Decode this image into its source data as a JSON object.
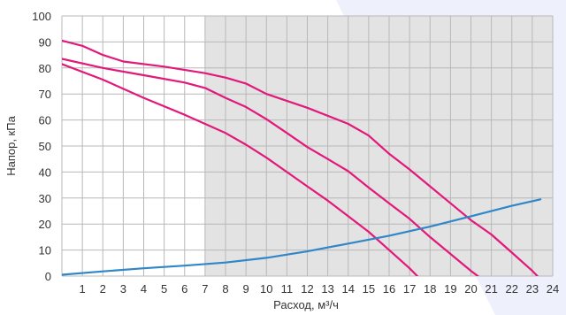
{
  "chart_data": {
    "type": "line",
    "title": "",
    "xlabel": "Расход, м³/ч",
    "ylabel": "Напор, кПа",
    "xlim": [
      0,
      24
    ],
    "ylim": [
      0,
      100
    ],
    "x_ticks": [
      "1",
      "2",
      "3",
      "4",
      "5",
      "6",
      "7",
      "8",
      "9",
      "10",
      "11",
      "12",
      "13",
      "14",
      "15",
      "16",
      "17",
      "18",
      "19",
      "20",
      "21",
      "22",
      "23",
      "24"
    ],
    "y_ticks": [
      "0",
      "10",
      "20",
      "30",
      "40",
      "50",
      "60",
      "70",
      "80",
      "90",
      "100"
    ],
    "shaded_from_x": 7,
    "grid": true,
    "colors": {
      "pump": "#e2187a",
      "system": "#2f86c8",
      "shade": "#e3e3e3",
      "grid": "#b8b8b8",
      "wedge": "#eef1fb"
    },
    "series": [
      {
        "role": "pump",
        "points": [
          [
            0,
            90.5
          ],
          [
            1,
            88.5
          ],
          [
            2,
            85
          ],
          [
            3,
            82.5
          ],
          [
            5,
            80.5
          ],
          [
            7,
            78
          ],
          [
            8,
            76.3
          ],
          [
            9,
            74
          ],
          [
            10,
            70
          ],
          [
            12,
            64.7
          ],
          [
            14,
            58.5
          ],
          [
            15,
            54
          ],
          [
            16,
            47
          ],
          [
            17,
            41
          ],
          [
            18,
            34.5
          ],
          [
            19,
            28
          ],
          [
            20,
            21.5
          ],
          [
            21,
            16
          ],
          [
            22,
            9
          ],
          [
            23,
            2
          ],
          [
            23.5,
            -2
          ]
        ]
      },
      {
        "role": "pump",
        "points": [
          [
            0,
            83.5
          ],
          [
            2,
            80
          ],
          [
            4,
            77.2
          ],
          [
            6,
            74.4
          ],
          [
            7,
            72.3
          ],
          [
            8,
            68.5
          ],
          [
            9,
            65
          ],
          [
            10,
            60.3
          ],
          [
            11,
            55
          ],
          [
            12,
            49.6
          ],
          [
            13,
            45
          ],
          [
            14,
            40.3
          ],
          [
            15,
            34
          ],
          [
            16,
            28
          ],
          [
            17,
            22
          ],
          [
            18,
            15
          ],
          [
            19,
            8.5
          ],
          [
            20,
            2
          ],
          [
            20.5,
            -1
          ]
        ]
      },
      {
        "role": "pump",
        "points": [
          [
            0,
            81.5
          ],
          [
            2,
            75.5
          ],
          [
            4,
            68.5
          ],
          [
            6,
            62
          ],
          [
            7,
            58.5
          ],
          [
            8,
            55
          ],
          [
            9,
            50.5
          ],
          [
            10,
            45.5
          ],
          [
            11,
            40
          ],
          [
            12,
            34.5
          ],
          [
            13,
            29
          ],
          [
            14,
            23
          ],
          [
            15,
            17
          ],
          [
            16,
            10
          ],
          [
            17,
            3
          ],
          [
            17.5,
            -1
          ]
        ]
      },
      {
        "role": "system",
        "points": [
          [
            0,
            0.5
          ],
          [
            2,
            1.8
          ],
          [
            4,
            3
          ],
          [
            6,
            4
          ],
          [
            8,
            5.2
          ],
          [
            10,
            7
          ],
          [
            12,
            9.5
          ],
          [
            14,
            12.5
          ],
          [
            16,
            15.5
          ],
          [
            18,
            19
          ],
          [
            20,
            23
          ],
          [
            22,
            27
          ],
          [
            23.4,
            29.5
          ]
        ]
      }
    ]
  }
}
